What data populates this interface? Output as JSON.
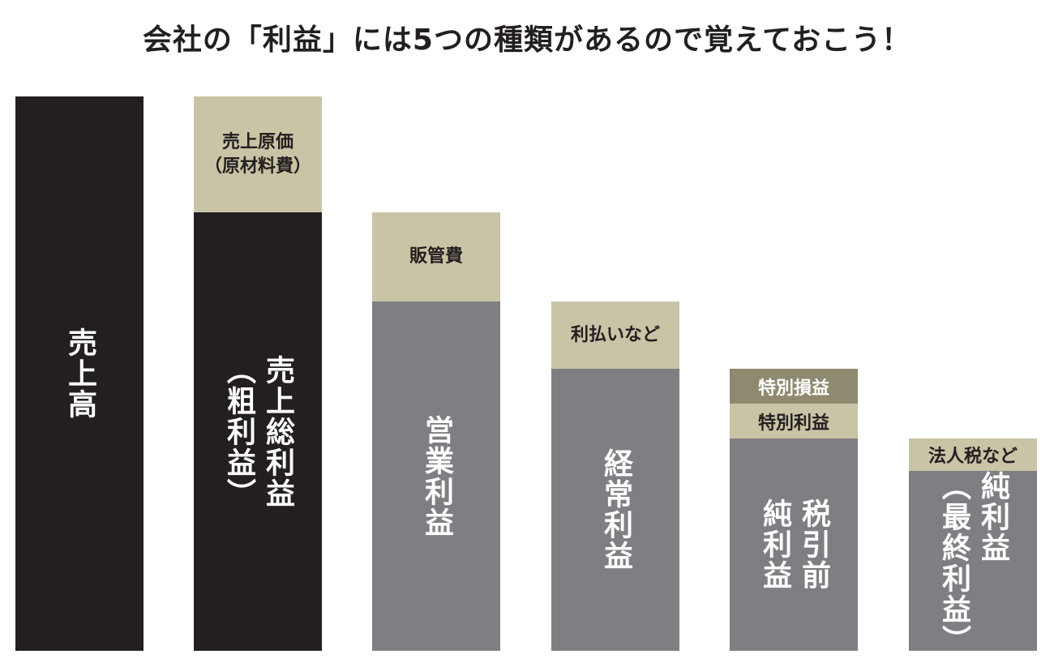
{
  "title": "会社の「利益」には5つの種類があるので覚えておこう！",
  "columns": [
    {
      "segments": [
        {
          "lines": [
            "売上高"
          ]
        }
      ]
    },
    {
      "segments": [
        {
          "lines": [
            "売上原価",
            "（原材料費）"
          ]
        },
        {
          "lines": [
            "売上総利益",
            "（粗利益）"
          ]
        }
      ]
    },
    {
      "segments": [
        {
          "lines": [
            "販管費"
          ]
        },
        {
          "lines": [
            "営業利益"
          ]
        }
      ]
    },
    {
      "segments": [
        {
          "lines": [
            "利払いなど"
          ]
        },
        {
          "lines": [
            "経常利益"
          ]
        }
      ]
    },
    {
      "segments": [
        {
          "lines": [
            "特別損益"
          ]
        },
        {
          "lines": [
            "特別利益"
          ]
        },
        {
          "lines": [
            "税引前",
            "純利益"
          ]
        }
      ]
    },
    {
      "segments": [
        {
          "lines": [
            "法人税など"
          ]
        },
        {
          "lines": [
            "純利益",
            "（最終利益）"
          ]
        }
      ]
    }
  ]
}
